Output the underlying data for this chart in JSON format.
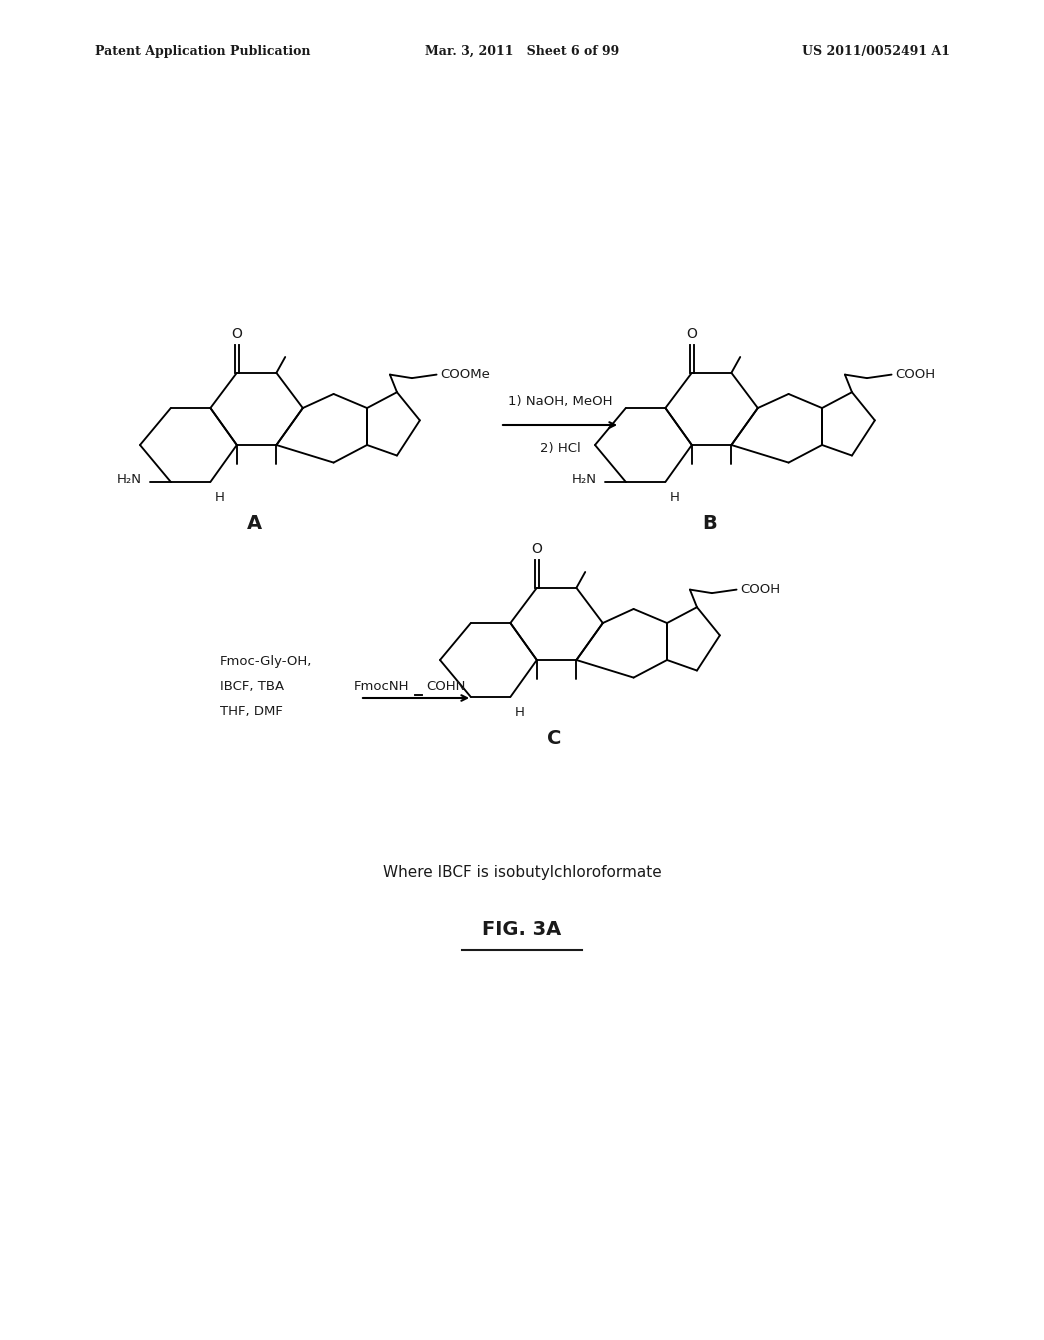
{
  "title": "FIG. 3A",
  "background_color": "#ffffff",
  "header_left": "Patent Application Publication",
  "header_mid": "Mar. 3, 2011   Sheet 6 of 99",
  "header_right": "US 2011/0052491 A1",
  "reaction1_conditions": [
    "1) NaOH, MeOH",
    "2) HCl"
  ],
  "reaction2_conditions": [
    "Fmoc-Gly-OH,",
    "IBCF, TBA",
    "THF, DMF"
  ],
  "footer_note": "Where IBCF is isobutylchloroformate",
  "label_A": "A",
  "label_B": "B",
  "label_C": "C",
  "text_color": "#1a1a1a"
}
